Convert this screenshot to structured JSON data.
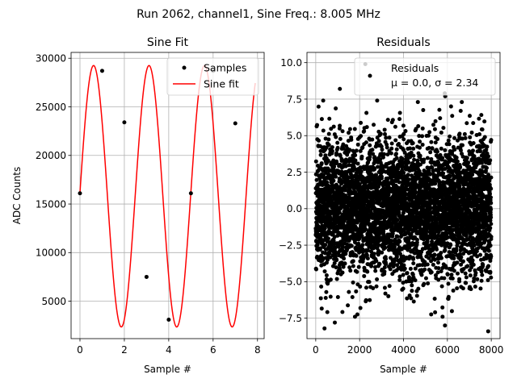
{
  "figure": {
    "suptitle": "Run 2062, channel1, Sine Freq.: 8.005 MHz"
  },
  "chart_data": [
    {
      "type": "line",
      "title": "Sine Fit",
      "xlabel": "Sample #",
      "ylabel": "ADC Counts",
      "xlim": [
        -0.4,
        8.3
      ],
      "ylim": [
        1150,
        30600
      ],
      "xticks": [
        0,
        2,
        4,
        6,
        8
      ],
      "xtick_labels": [
        "0",
        "2",
        "4",
        "6",
        "8"
      ],
      "yticks": [
        5000,
        10000,
        15000,
        20000,
        25000,
        30000
      ],
      "ytick_labels": [
        "5000",
        "10000",
        "15000",
        "20000",
        "25000",
        "30000"
      ],
      "grid": true,
      "legend_position": "top-right",
      "series": [
        {
          "name": "Samples",
          "kind": "scatter",
          "color": "#000000",
          "x": [
            0,
            1,
            2,
            3,
            4,
            5,
            6,
            7
          ],
          "y": [
            16100,
            28700,
            23400,
            7500,
            3100,
            16100,
            28700,
            23300
          ]
        },
        {
          "name": "Sine fit",
          "kind": "line",
          "color": "#ff0000",
          "model": {
            "form": "offset + amplitude * sin(2*pi*cycles_per_sample*x + phase)",
            "offset": 15800,
            "amplitude": 13450,
            "cycles_per_sample": 0.4003,
            "phase": 0.027,
            "x_range": [
              0,
              7.9
            ]
          }
        }
      ]
    },
    {
      "type": "scatter",
      "title": "Residuals",
      "xlabel": "Sample #",
      "ylabel": "",
      "xlim": [
        -400,
        8400
      ],
      "ylim": [
        -8.9,
        10.7
      ],
      "xticks": [
        0,
        2000,
        4000,
        6000,
        8000
      ],
      "xtick_labels": [
        "0",
        "2000",
        "4000",
        "6000",
        "8000"
      ],
      "yticks": [
        -7.5,
        -5.0,
        -2.5,
        0.0,
        2.5,
        5.0,
        7.5,
        10.0
      ],
      "ytick_labels": [
        "−7.5",
        "−5.0",
        "−2.5",
        "0.0",
        "2.5",
        "5.0",
        "7.5",
        "10.0"
      ],
      "grid": true,
      "legend_position": "top-right",
      "series": [
        {
          "name": "Residuals",
          "label_line2": "μ = 0.0, σ = 2.34",
          "color": "#000000",
          "n_points": 8000,
          "mean": 0.0,
          "std": 2.34,
          "x_range": [
            0,
            7999
          ],
          "outliers": [
            {
              "x": 2260,
              "y": 9.9
            },
            {
              "x": 1100,
              "y": 8.2
            },
            {
              "x": 5880,
              "y": 7.9
            },
            {
              "x": 5900,
              "y": 7.7
            },
            {
              "x": 2800,
              "y": 7.4
            },
            {
              "x": 340,
              "y": 7.4
            },
            {
              "x": 400,
              "y": -8.2
            },
            {
              "x": 7860,
              "y": -8.4
            },
            {
              "x": 5890,
              "y": -8.0
            },
            {
              "x": 5440,
              "y": -7.1
            },
            {
              "x": 870,
              "y": -7.8
            }
          ]
        }
      ]
    }
  ]
}
